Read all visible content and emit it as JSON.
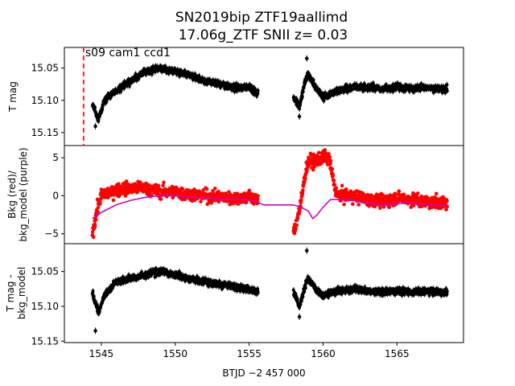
{
  "chart_data": {
    "type": "scatter",
    "title_line1": "SN2019bip  ZTF19aallimd",
    "title_line2": "17.06g_ZTF SNII z= 0.03",
    "xlabel": "BTJD −2 457 000",
    "xlim": [
      1542.5,
      1569.5
    ],
    "xticks": [
      1545,
      1550,
      1555,
      1560,
      1565
    ],
    "xtick_labels": [
      "1545",
      "1550",
      "1555",
      "1560",
      "1565"
    ],
    "marker_line": {
      "x": 1543.8,
      "color": "#ff0000",
      "style": "dashed"
    },
    "annotation": "s09 cam1 ccd1",
    "panels": [
      {
        "id": "top",
        "ylabel": [
          "T mag"
        ],
        "ylim": [
          15.17,
          15.018
        ],
        "inverted": true,
        "yticks": [
          15.05,
          15.1,
          15.15
        ],
        "ytick_labels": [
          "15.05",
          "15.10",
          "15.15"
        ],
        "color": "#000000",
        "errorbars": true,
        "segments": [
          {
            "t": [
              1544.4,
              1544.8,
              1545.2,
              1546.0,
              1547.0,
              1548.0,
              1549.0,
              1550.0,
              1551.0,
              1552.0,
              1553.0,
              1554.0,
              1555.0,
              1555.6
            ],
            "y": [
              15.105,
              15.13,
              15.1,
              15.085,
              15.07,
              15.055,
              15.05,
              15.055,
              15.06,
              15.07,
              15.075,
              15.08,
              15.08,
              15.09
            ]
          },
          {
            "t": [
              1558.0,
              1558.4,
              1558.8,
              1559.0,
              1559.5,
              1560.0,
              1561.0,
              1562.0,
              1563.0,
              1564.0,
              1565.0,
              1566.0,
              1567.0,
              1568.4
            ],
            "y": [
              15.095,
              15.11,
              15.07,
              15.06,
              15.08,
              15.095,
              15.085,
              15.08,
              15.08,
              15.082,
              15.08,
              15.082,
              15.08,
              15.082
            ]
          }
        ],
        "outliers": [
          {
            "t": 1544.6,
            "y": 15.14
          },
          {
            "t": 1558.9,
            "y": 15.035
          },
          {
            "t": 1558.4,
            "y": 15.125
          }
        ]
      },
      {
        "id": "middle",
        "ylabel": [
          "Bkg (red)/",
          "bkg_model (purple)"
        ],
        "ylim": [
          -6.3,
          6.6
        ],
        "inverted": false,
        "yticks": [
          -5,
          0,
          5
        ],
        "ytick_labels": [
          "−5",
          "0",
          "5"
        ],
        "color": "#ff0000",
        "model_color": "#cc00cc",
        "model": {
          "t": [
            1544.4,
            1545.0,
            1546.0,
            1547.0,
            1548.0,
            1549.0,
            1550.0,
            1551.0,
            1552.0,
            1553.0,
            1554.0,
            1555.0,
            1556.0,
            1557.0,
            1558.0,
            1558.5,
            1559.0,
            1559.3,
            1559.6,
            1560.0,
            1560.5,
            1561.0,
            1562.0,
            1563.0,
            1564.0,
            1565.0,
            1566.0,
            1567.0,
            1568.4
          ],
          "y": [
            -3.0,
            -2.2,
            -1.2,
            -0.6,
            -0.2,
            0.0,
            0.0,
            -0.2,
            -0.3,
            -0.5,
            -0.5,
            -0.5,
            -1.2,
            -1.2,
            -1.2,
            -1.5,
            -2.0,
            -3.0,
            -2.5,
            -1.5,
            -0.5,
            -0.5,
            -0.6,
            -1.0,
            -1.3,
            -1.0,
            -1.0,
            -1.2,
            -1.3
          ]
        },
        "segments": [
          {
            "t": [
              1544.4,
              1544.7,
              1545.0,
              1546.0,
              1547.0,
              1548.0,
              1549.0,
              1550.0,
              1551.0,
              1552.0,
              1553.0,
              1554.0,
              1555.0,
              1555.6
            ],
            "y": [
              -5.0,
              -2.0,
              0.0,
              0.8,
              1.0,
              1.0,
              0.5,
              0.5,
              0.2,
              0.0,
              -0.2,
              -0.3,
              -0.2,
              -0.5
            ]
          },
          {
            "t": [
              1558.0,
              1558.5,
              1558.8,
              1559.0,
              1559.5,
              1560.0,
              1560.4,
              1560.8,
              1561.0,
              1562.0,
              1563.0,
              1564.0,
              1565.0,
              1566.0,
              1567.0,
              1568.4
            ],
            "y": [
              -5.0,
              -1.0,
              3.0,
              4.5,
              4.5,
              5.0,
              5.0,
              1.0,
              0.0,
              0.0,
              -0.5,
              -0.8,
              -0.3,
              -0.5,
              -0.8,
              -1.0
            ]
          }
        ]
      },
      {
        "id": "bottom",
        "ylabel": [
          "T mag -",
          "bkg_model"
        ],
        "ylim": [
          15.152,
          15.01
        ],
        "inverted": true,
        "yticks": [
          15.05,
          15.1,
          15.15
        ],
        "ytick_labels": [
          "15.05",
          "15.10",
          "15.15"
        ],
        "color": "#000000",
        "errorbars": true,
        "segments": [
          {
            "t": [
              1544.4,
              1544.8,
              1545.2,
              1546.0,
              1547.0,
              1548.0,
              1549.0,
              1550.0,
              1551.0,
              1552.0,
              1553.0,
              1554.0,
              1555.0,
              1555.6
            ],
            "y": [
              15.08,
              15.11,
              15.085,
              15.065,
              15.06,
              15.055,
              15.05,
              15.055,
              15.06,
              15.065,
              15.068,
              15.072,
              15.075,
              15.08
            ]
          },
          {
            "t": [
              1558.0,
              1558.4,
              1558.8,
              1559.0,
              1559.5,
              1560.0,
              1561.0,
              1562.0,
              1563.0,
              1564.0,
              1565.0,
              1566.0,
              1567.0,
              1568.4
            ],
            "y": [
              15.08,
              15.1,
              15.07,
              15.06,
              15.075,
              15.085,
              15.078,
              15.075,
              15.078,
              15.08,
              15.078,
              15.08,
              15.078,
              15.08
            ]
          }
        ],
        "outliers": [
          {
            "t": 1544.6,
            "y": 15.135
          },
          {
            "t": 1558.9,
            "y": 15.02
          },
          {
            "t": 1558.4,
            "y": 15.115
          }
        ]
      }
    ]
  }
}
